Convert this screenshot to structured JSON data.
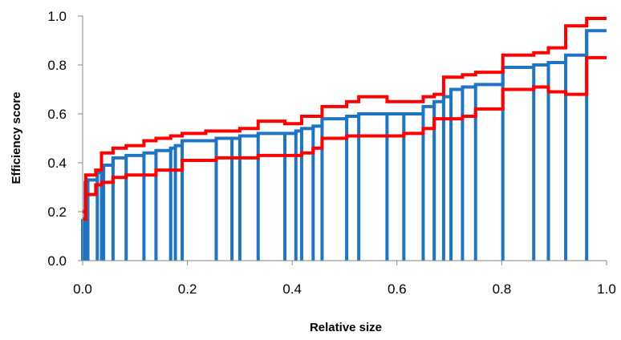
{
  "chart_data": {
    "type": "line",
    "title": "",
    "xlabel": "Relative size",
    "ylabel": "Efficiency score",
    "xlim": [
      0,
      1
    ],
    "ylim": [
      0,
      1
    ],
    "x_ticks": [
      "0.0",
      "0.2",
      "0.4",
      "0.6",
      "0.8",
      "1.0"
    ],
    "y_ticks": [
      "0.0",
      "0.2",
      "0.4",
      "0.6",
      "0.8",
      "1.0"
    ],
    "grid": false,
    "legend": "none",
    "colors": {
      "blue": "#1f74c3",
      "red": "#ff0000",
      "axis": "#868686"
    },
    "series": [
      {
        "color": "blue",
        "steps": [
          {
            "x": 0.0,
            "y": 0.17
          },
          {
            "x": 0.005,
            "y": 0.32
          },
          {
            "x": 0.01,
            "y": 0.33
          },
          {
            "x": 0.028,
            "y": 0.36
          },
          {
            "x": 0.036,
            "y": 0.38
          },
          {
            "x": 0.04,
            "y": 0.39
          },
          {
            "x": 0.058,
            "y": 0.42
          },
          {
            "x": 0.083,
            "y": 0.43
          },
          {
            "x": 0.117,
            "y": 0.44
          },
          {
            "x": 0.14,
            "y": 0.45
          },
          {
            "x": 0.168,
            "y": 0.46
          },
          {
            "x": 0.177,
            "y": 0.47
          },
          {
            "x": 0.19,
            "y": 0.49
          },
          {
            "x": 0.255,
            "y": 0.5
          },
          {
            "x": 0.285,
            "y": 0.5
          },
          {
            "x": 0.3,
            "y": 0.51
          },
          {
            "x": 0.335,
            "y": 0.52
          },
          {
            "x": 0.386,
            "y": 0.52
          },
          {
            "x": 0.407,
            "y": 0.53
          },
          {
            "x": 0.418,
            "y": 0.54
          },
          {
            "x": 0.44,
            "y": 0.55
          },
          {
            "x": 0.457,
            "y": 0.58
          },
          {
            "x": 0.504,
            "y": 0.59
          },
          {
            "x": 0.527,
            "y": 0.6
          },
          {
            "x": 0.581,
            "y": 0.6
          },
          {
            "x": 0.613,
            "y": 0.6
          },
          {
            "x": 0.65,
            "y": 0.63
          },
          {
            "x": 0.671,
            "y": 0.65
          },
          {
            "x": 0.689,
            "y": 0.67
          },
          {
            "x": 0.703,
            "y": 0.7
          },
          {
            "x": 0.725,
            "y": 0.71
          },
          {
            "x": 0.75,
            "y": 0.72
          },
          {
            "x": 0.802,
            "y": 0.79
          },
          {
            "x": 0.861,
            "y": 0.8
          },
          {
            "x": 0.889,
            "y": 0.81
          },
          {
            "x": 0.922,
            "y": 0.84
          },
          {
            "x": 0.962,
            "y": 0.94
          },
          {
            "x": 1.0,
            "y": 0.94
          }
        ]
      },
      {
        "color": "red",
        "steps": [
          {
            "x": 0.0,
            "y": 0.2
          },
          {
            "x": 0.006,
            "y": 0.35
          },
          {
            "x": 0.025,
            "y": 0.37
          },
          {
            "x": 0.036,
            "y": 0.44
          },
          {
            "x": 0.058,
            "y": 0.46
          },
          {
            "x": 0.083,
            "y": 0.47
          },
          {
            "x": 0.117,
            "y": 0.49
          },
          {
            "x": 0.14,
            "y": 0.5
          },
          {
            "x": 0.168,
            "y": 0.51
          },
          {
            "x": 0.19,
            "y": 0.52
          },
          {
            "x": 0.235,
            "y": 0.53
          },
          {
            "x": 0.3,
            "y": 0.54
          },
          {
            "x": 0.335,
            "y": 0.57
          },
          {
            "x": 0.386,
            "y": 0.56
          },
          {
            "x": 0.418,
            "y": 0.59
          },
          {
            "x": 0.457,
            "y": 0.63
          },
          {
            "x": 0.504,
            "y": 0.65
          },
          {
            "x": 0.527,
            "y": 0.67
          },
          {
            "x": 0.581,
            "y": 0.65
          },
          {
            "x": 0.65,
            "y": 0.67
          },
          {
            "x": 0.671,
            "y": 0.68
          },
          {
            "x": 0.689,
            "y": 0.75
          },
          {
            "x": 0.725,
            "y": 0.76
          },
          {
            "x": 0.75,
            "y": 0.77
          },
          {
            "x": 0.802,
            "y": 0.84
          },
          {
            "x": 0.861,
            "y": 0.85
          },
          {
            "x": 0.889,
            "y": 0.87
          },
          {
            "x": 0.922,
            "y": 0.96
          },
          {
            "x": 0.962,
            "y": 0.99
          },
          {
            "x": 1.0,
            "y": 0.99
          }
        ]
      },
      {
        "color": "red",
        "steps": [
          {
            "x": 0.0,
            "y": 0.17
          },
          {
            "x": 0.006,
            "y": 0.27
          },
          {
            "x": 0.025,
            "y": 0.31
          },
          {
            "x": 0.036,
            "y": 0.32
          },
          {
            "x": 0.058,
            "y": 0.34
          },
          {
            "x": 0.083,
            "y": 0.35
          },
          {
            "x": 0.14,
            "y": 0.37
          },
          {
            "x": 0.19,
            "y": 0.41
          },
          {
            "x": 0.255,
            "y": 0.42
          },
          {
            "x": 0.3,
            "y": 0.42
          },
          {
            "x": 0.335,
            "y": 0.43
          },
          {
            "x": 0.386,
            "y": 0.43
          },
          {
            "x": 0.418,
            "y": 0.44
          },
          {
            "x": 0.44,
            "y": 0.46
          },
          {
            "x": 0.457,
            "y": 0.5
          },
          {
            "x": 0.504,
            "y": 0.51
          },
          {
            "x": 0.581,
            "y": 0.51
          },
          {
            "x": 0.613,
            "y": 0.52
          },
          {
            "x": 0.65,
            "y": 0.54
          },
          {
            "x": 0.671,
            "y": 0.58
          },
          {
            "x": 0.725,
            "y": 0.59
          },
          {
            "x": 0.75,
            "y": 0.62
          },
          {
            "x": 0.802,
            "y": 0.7
          },
          {
            "x": 0.861,
            "y": 0.71
          },
          {
            "x": 0.889,
            "y": 0.69
          },
          {
            "x": 0.922,
            "y": 0.68
          },
          {
            "x": 0.962,
            "y": 0.83
          },
          {
            "x": 1.0,
            "y": 0.83
          }
        ]
      }
    ]
  }
}
